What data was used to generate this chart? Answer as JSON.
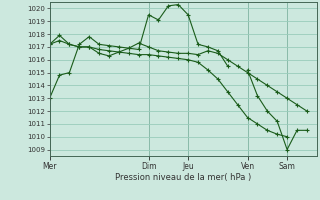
{
  "title": "",
  "xlabel": "Pression niveau de la mer( hPa )",
  "bg_color": "#cce8de",
  "grid_color": "#99ccbb",
  "line_color": "#1a5c1a",
  "ylim": [
    1008.5,
    1020.5
  ],
  "yticks": [
    1009,
    1010,
    1011,
    1012,
    1013,
    1014,
    1015,
    1016,
    1017,
    1018,
    1019,
    1020
  ],
  "day_labels": [
    "Mer",
    "Dim",
    "Jeu",
    "Ven",
    "Sam"
  ],
  "day_x_data": [
    0,
    10,
    14,
    20,
    24
  ],
  "xlim": [
    0,
    27
  ],
  "series": [
    {
      "x": [
        0,
        1,
        2,
        3,
        4,
        5,
        6,
        7,
        8,
        9,
        10,
        11,
        12,
        13,
        14,
        15,
        16,
        17,
        18
      ],
      "y": [
        1013.0,
        1014.8,
        1015.0,
        1017.2,
        1017.8,
        1017.2,
        1017.1,
        1017.0,
        1016.9,
        1016.8,
        1019.5,
        1019.1,
        1020.2,
        1020.3,
        1019.5,
        1017.2,
        1017.0,
        1016.7,
        1015.5
      ]
    },
    {
      "x": [
        0,
        1,
        2,
        3,
        4,
        5,
        6,
        7,
        8,
        9,
        10,
        11,
        12,
        13,
        14,
        15,
        16,
        17,
        18,
        19,
        20,
        21,
        22,
        23,
        24,
        25,
        26
      ],
      "y": [
        1017.2,
        1017.5,
        1017.2,
        1017.0,
        1017.0,
        1016.8,
        1016.7,
        1016.6,
        1016.9,
        1017.3,
        1017.0,
        1016.7,
        1016.6,
        1016.5,
        1016.5,
        1016.4,
        1016.7,
        1016.5,
        1016.0,
        1015.5,
        1015.0,
        1014.5,
        1014.0,
        1013.5,
        1013.0,
        1012.5,
        1012.0
      ]
    },
    {
      "x": [
        0,
        1,
        2,
        3,
        4,
        5,
        6,
        7,
        8,
        9,
        10,
        11,
        12,
        13,
        14,
        15,
        16,
        17,
        18,
        19,
        20,
        21,
        22,
        23,
        24
      ],
      "y": [
        1017.2,
        1017.9,
        1017.2,
        1017.0,
        1017.0,
        1016.5,
        1016.3,
        1016.6,
        1016.5,
        1016.4,
        1016.4,
        1016.3,
        1016.2,
        1016.1,
        1016.0,
        1015.8,
        1015.2,
        1014.5,
        1013.5,
        1012.5,
        1011.5,
        1011.0,
        1010.5,
        1010.2,
        1010.0
      ]
    },
    {
      "x": [
        20,
        21,
        22,
        23,
        24,
        25,
        26
      ],
      "y": [
        1015.2,
        1013.2,
        1012.0,
        1011.2,
        1009.0,
        1010.5,
        1010.5
      ]
    }
  ]
}
